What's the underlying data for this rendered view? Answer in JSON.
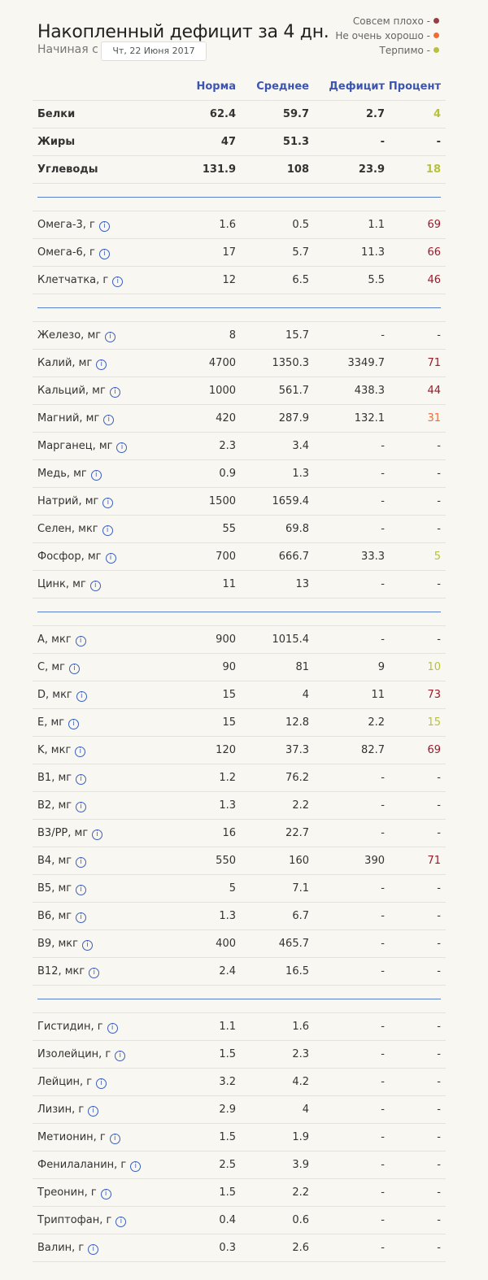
{
  "header": {
    "title": "Накопленный дефицит за 4 дн.",
    "start_label": "Начиная с",
    "date": "Чт, 22  Июня 2017"
  },
  "legend": [
    {
      "label": "Совсем плохо -",
      "color": "#9b3b44"
    },
    {
      "label": "Не очень хорошо -",
      "color": "#f26b35"
    },
    {
      "label": "Терпимо -",
      "color": "#b7c23a"
    }
  ],
  "columns": [
    "Норма",
    "Среднее",
    "Дефицит",
    "Процент"
  ],
  "level_colors": {
    "bad": "#9b1b2b",
    "mid": "#f26b35",
    "ok": "#b7c23a"
  },
  "info_icon": "info-circle-icon",
  "groups": [
    {
      "bold": true,
      "rows": [
        {
          "name": "Белки",
          "norm": "62.4",
          "avg": "59.7",
          "deficit": "2.7",
          "percent": "4",
          "level": "ok"
        },
        {
          "name": "Жиры",
          "norm": "47",
          "avg": "51.3",
          "deficit": "-",
          "percent": "-"
        },
        {
          "name": "Углеводы",
          "norm": "131.9",
          "avg": "108",
          "deficit": "23.9",
          "percent": "18",
          "level": "ok"
        }
      ]
    },
    {
      "rows": [
        {
          "name": "Омега-3, г",
          "info": true,
          "norm": "1.6",
          "avg": "0.5",
          "deficit": "1.1",
          "percent": "69",
          "level": "bad"
        },
        {
          "name": "Омега-6, г",
          "info": true,
          "norm": "17",
          "avg": "5.7",
          "deficit": "11.3",
          "percent": "66",
          "level": "bad"
        },
        {
          "name": "Клетчатка, г",
          "info": true,
          "norm": "12",
          "avg": "6.5",
          "deficit": "5.5",
          "percent": "46",
          "level": "bad"
        }
      ]
    },
    {
      "rows": [
        {
          "name": "Железо, мг",
          "info": true,
          "norm": "8",
          "avg": "15.7",
          "deficit": "-",
          "percent": "-"
        },
        {
          "name": "Калий, мг",
          "info": true,
          "norm": "4700",
          "avg": "1350.3",
          "deficit": "3349.7",
          "percent": "71",
          "level": "bad"
        },
        {
          "name": "Кальций, мг",
          "info": true,
          "norm": "1000",
          "avg": "561.7",
          "deficit": "438.3",
          "percent": "44",
          "level": "bad"
        },
        {
          "name": "Магний, мг",
          "info": true,
          "norm": "420",
          "avg": "287.9",
          "deficit": "132.1",
          "percent": "31",
          "level": "mid"
        },
        {
          "name": "Марганец, мг",
          "info": true,
          "norm": "2.3",
          "avg": "3.4",
          "deficit": "-",
          "percent": "-"
        },
        {
          "name": "Медь, мг",
          "info": true,
          "norm": "0.9",
          "avg": "1.3",
          "deficit": "-",
          "percent": "-"
        },
        {
          "name": "Натрий, мг",
          "info": true,
          "norm": "1500",
          "avg": "1659.4",
          "deficit": "-",
          "percent": "-"
        },
        {
          "name": "Селен, мкг",
          "info": true,
          "norm": "55",
          "avg": "69.8",
          "deficit": "-",
          "percent": "-"
        },
        {
          "name": "Фосфор, мг",
          "info": true,
          "norm": "700",
          "avg": "666.7",
          "deficit": "33.3",
          "percent": "5",
          "level": "ok"
        },
        {
          "name": "Цинк, мг",
          "info": true,
          "norm": "11",
          "avg": "13",
          "deficit": "-",
          "percent": "-"
        }
      ]
    },
    {
      "rows": [
        {
          "name": "A, мкг",
          "info": true,
          "norm": "900",
          "avg": "1015.4",
          "deficit": "-",
          "percent": "-"
        },
        {
          "name": "C, мг",
          "info": true,
          "norm": "90",
          "avg": "81",
          "deficit": "9",
          "percent": "10",
          "level": "ok"
        },
        {
          "name": "D, мкг",
          "info": true,
          "norm": "15",
          "avg": "4",
          "deficit": "11",
          "percent": "73",
          "level": "bad"
        },
        {
          "name": "E, мг",
          "info": true,
          "norm": "15",
          "avg": "12.8",
          "deficit": "2.2",
          "percent": "15",
          "level": "ok"
        },
        {
          "name": "K, мкг",
          "info": true,
          "norm": "120",
          "avg": "37.3",
          "deficit": "82.7",
          "percent": "69",
          "level": "bad"
        },
        {
          "name": "B1, мг",
          "info": true,
          "norm": "1.2",
          "avg": "76.2",
          "deficit": "-",
          "percent": "-"
        },
        {
          "name": "B2, мг",
          "info": true,
          "norm": "1.3",
          "avg": "2.2",
          "deficit": "-",
          "percent": "-"
        },
        {
          "name": "B3/PP, мг",
          "info": true,
          "norm": "16",
          "avg": "22.7",
          "deficit": "-",
          "percent": "-"
        },
        {
          "name": "B4, мг",
          "info": true,
          "norm": "550",
          "avg": "160",
          "deficit": "390",
          "percent": "71",
          "level": "bad"
        },
        {
          "name": "B5, мг",
          "info": true,
          "norm": "5",
          "avg": "7.1",
          "deficit": "-",
          "percent": "-"
        },
        {
          "name": "B6, мг",
          "info": true,
          "norm": "1.3",
          "avg": "6.7",
          "deficit": "-",
          "percent": "-"
        },
        {
          "name": "B9, мкг",
          "info": true,
          "norm": "400",
          "avg": "465.7",
          "deficit": "-",
          "percent": "-"
        },
        {
          "name": "B12, мкг",
          "info": true,
          "norm": "2.4",
          "avg": "16.5",
          "deficit": "-",
          "percent": "-"
        }
      ]
    },
    {
      "rows": [
        {
          "name": "Гистидин, г",
          "info": true,
          "norm": "1.1",
          "avg": "1.6",
          "deficit": "-",
          "percent": "-"
        },
        {
          "name": "Изолейцин, г",
          "info": true,
          "norm": "1.5",
          "avg": "2.3",
          "deficit": "-",
          "percent": "-"
        },
        {
          "name": "Лейцин, г",
          "info": true,
          "norm": "3.2",
          "avg": "4.2",
          "deficit": "-",
          "percent": "-"
        },
        {
          "name": "Лизин, г",
          "info": true,
          "norm": "2.9",
          "avg": "4",
          "deficit": "-",
          "percent": "-"
        },
        {
          "name": "Метионин, г",
          "info": true,
          "norm": "1.5",
          "avg": "1.9",
          "deficit": "-",
          "percent": "-"
        },
        {
          "name": "Фенилаланин, г",
          "info": true,
          "norm": "2.5",
          "avg": "3.9",
          "deficit": "-",
          "percent": "-"
        },
        {
          "name": "Треонин, г",
          "info": true,
          "norm": "1.5",
          "avg": "2.2",
          "deficit": "-",
          "percent": "-"
        },
        {
          "name": "Триптофан, г",
          "info": true,
          "norm": "0.4",
          "avg": "0.6",
          "deficit": "-",
          "percent": "-"
        },
        {
          "name": "Валин, г",
          "info": true,
          "norm": "0.3",
          "avg": "2.6",
          "deficit": "-",
          "percent": "-"
        }
      ]
    }
  ]
}
